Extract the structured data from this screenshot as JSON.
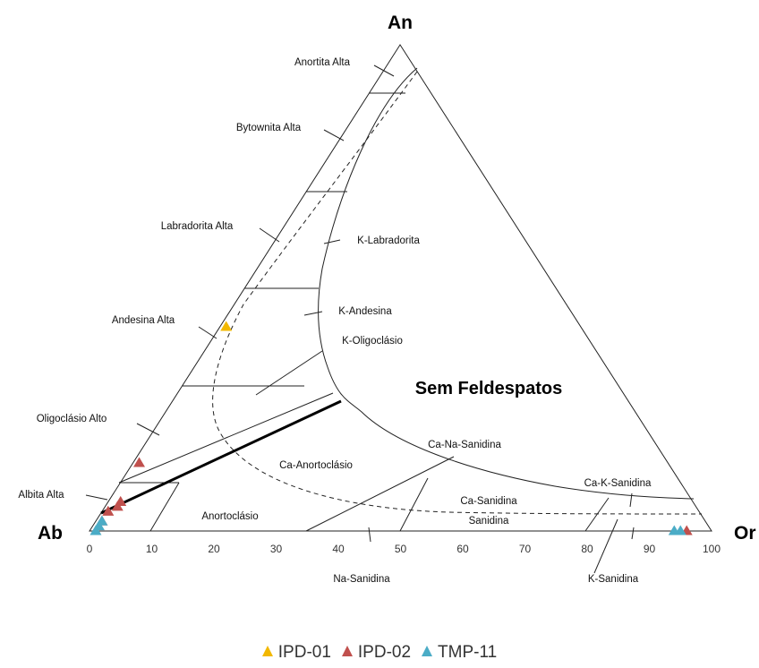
{
  "chart_data": {
    "type": "scatter",
    "title": "",
    "subtitle": "",
    "vertices": {
      "top": "An",
      "left": "Ab",
      "right": "Or"
    },
    "axis": {
      "ticks": [
        0,
        10,
        20,
        30,
        40,
        50,
        60,
        70,
        80,
        90,
        100
      ],
      "range": [
        0,
        100
      ]
    },
    "grid": false,
    "legend_position": "bottom",
    "center_label": "Sem Feldespatos",
    "field_labels": [
      "Anortita Alta",
      "Bytownita Alta",
      "Labradorita Alta",
      "Andesina Alta",
      "Oligoclásio Alto",
      "Albita Alta",
      "K-Labradorita",
      "K-Andesina",
      "K-Oligoclásio",
      "Ca-Anortoclásio",
      "Anortoclásio",
      "Ca-Na-Sanidina",
      "Ca-K-Sanidina",
      "Ca-Sanidina",
      "Sanidina",
      "Na-Sanidina",
      "K-Sanidina"
    ],
    "series": [
      {
        "name": "IPD-01",
        "color": "#F2B800",
        "marker": "triangle",
        "points": [
          {
            "An": 42,
            "Ab": 57,
            "Or": 1
          }
        ]
      },
      {
        "name": "IPD-02",
        "color": "#C0504D",
        "marker": "triangle",
        "points": [
          {
            "An": 14,
            "Ab": 85,
            "Or": 1
          },
          {
            "An": 6,
            "Ab": 92,
            "Or": 2
          },
          {
            "An": 5,
            "Ab": 93,
            "Or": 2
          },
          {
            "An": 4,
            "Ab": 95,
            "Or": 1
          },
          {
            "An": 2,
            "Ab": 97,
            "Or": 1
          },
          {
            "An": 0,
            "Ab": 4,
            "Or": 96
          }
        ]
      },
      {
        "name": "TMP-11",
        "color": "#4BACC6",
        "marker": "triangle",
        "points": [
          {
            "An": 1,
            "Ab": 98,
            "Or": 1
          },
          {
            "An": 0,
            "Ab": 99,
            "Or": 1
          },
          {
            "An": 2,
            "Ab": 97,
            "Or": 1
          },
          {
            "An": 0,
            "Ab": 6,
            "Or": 94
          },
          {
            "An": 0,
            "Ab": 5,
            "Or": 95
          }
        ]
      }
    ]
  }
}
